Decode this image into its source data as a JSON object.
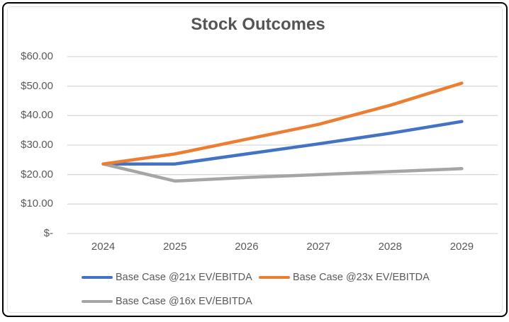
{
  "chart_data": {
    "type": "line",
    "title": "Stock Outcomes",
    "categories": [
      "2024",
      "2025",
      "2026",
      "2027",
      "2028",
      "2029"
    ],
    "series": [
      {
        "name": "Base Case @21x EV/EBITDA",
        "color": "#4472C4",
        "values": [
          23.6,
          23.6,
          27.0,
          30.4,
          34.0,
          38.0
        ]
      },
      {
        "name": "Base Case @23x EV/EBITDA",
        "color": "#ED7D31",
        "values": [
          23.6,
          27.0,
          32.0,
          37.0,
          43.5,
          51.0
        ]
      },
      {
        "name": "Base Case @16x EV/EBITDA",
        "color": "#A5A5A5",
        "values": [
          23.6,
          17.8,
          19.0,
          20.0,
          21.0,
          22.0
        ]
      }
    ],
    "y_axis": {
      "tick_labels_top_to_bottom": [
        "$60.00",
        "$50.00",
        "$40.00",
        "$30.00",
        "$20.00",
        "$10.00",
        "$-"
      ],
      "tick_values_top_to_bottom": [
        60,
        50,
        40,
        30,
        20,
        10,
        0
      ],
      "min": 0,
      "max": 60,
      "step": 10
    },
    "x_axis": {
      "labels": [
        "2024",
        "2025",
        "2026",
        "2027",
        "2028",
        "2029"
      ]
    },
    "grid": true,
    "legend_position": "bottom",
    "legend_rows": [
      [
        0,
        1
      ],
      [
        2
      ]
    ],
    "colors": {
      "gridline": "#D9D9D9",
      "axis_line": "#D9D9D9",
      "axis_text": "#595959",
      "title_text": "#555555",
      "frame_border": "#000000",
      "background": "#FFFFFF"
    }
  }
}
